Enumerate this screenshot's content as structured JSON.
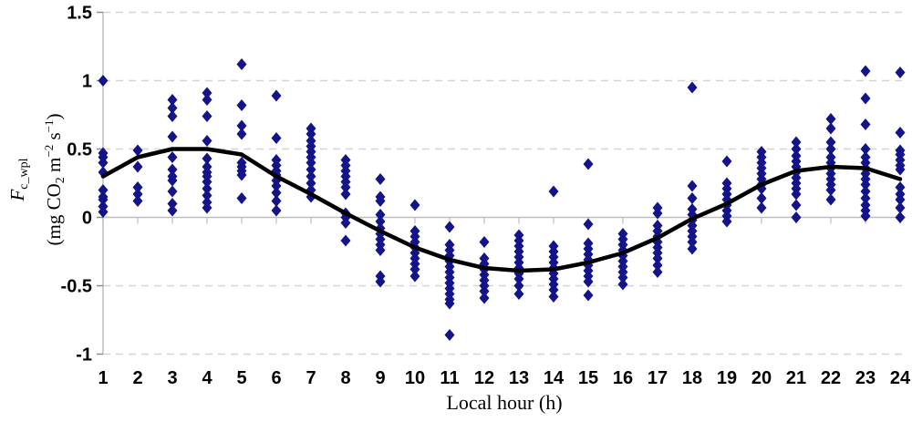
{
  "chart_data": {
    "type": "scatter",
    "xlabel": "Local hour (h)",
    "ylabel_symbol": "F",
    "ylabel_symbol_sub": "c_wpl",
    "ylabel_units_parts": [
      [
        "(mg CO",
        ""
      ],
      [
        "2",
        "sub"
      ],
      [
        " m",
        ""
      ],
      [
        "−2",
        "sup"
      ],
      [
        " s",
        ""
      ],
      [
        "−1",
        "sup"
      ],
      [
        ")",
        ""
      ]
    ],
    "x_categories": [
      1,
      2,
      3,
      4,
      5,
      6,
      7,
      8,
      9,
      10,
      11,
      12,
      13,
      14,
      15,
      16,
      17,
      18,
      19,
      20,
      21,
      22,
      23,
      24
    ],
    "y_tick_labels": [
      "1.5",
      "1",
      "0.5",
      "0",
      "-0.5",
      "-1"
    ],
    "y_tick_values": [
      1.5,
      1,
      0.5,
      0,
      -0.5,
      -1
    ],
    "ylim": [
      -1,
      1.5
    ],
    "grid": "horizontal, dashed at 1.5/1/0.5/-0.5/-1, solid at 0",
    "legend": "none",
    "marker": {
      "shape": "diamond",
      "color": "#14148a"
    },
    "mean_line_color": "#000000",
    "gridline_color": "#d4d4d4",
    "axis_color": "#bdbdbd",
    "scatter_points_by_hour": {
      "1": [
        1.0,
        0.47,
        0.44,
        0.4,
        0.33,
        0.2,
        0.15,
        0.13,
        0.08,
        0.04
      ],
      "2": [
        0.49,
        0.37,
        0.22,
        0.17,
        0.12
      ],
      "3": [
        0.86,
        0.8,
        0.74,
        0.59,
        0.44,
        0.35,
        0.3,
        0.27,
        0.19,
        0.1,
        0.05
      ],
      "4": [
        0.91,
        0.86,
        0.74,
        0.56,
        0.43,
        0.37,
        0.33,
        0.3,
        0.26,
        0.21,
        0.16,
        0.11,
        0.07
      ],
      "5": [
        1.12,
        0.82,
        0.67,
        0.61,
        0.4,
        0.37,
        0.34,
        0.31,
        0.14
      ],
      "6": [
        0.89,
        0.58,
        0.42,
        0.38,
        0.34,
        0.31,
        0.27,
        0.23,
        0.18,
        0.12,
        0.05
      ],
      "7": [
        0.65,
        0.61,
        0.56,
        0.52,
        0.48,
        0.44,
        0.4,
        0.35,
        0.3,
        0.25,
        0.2,
        0.15
      ],
      "8": [
        0.42,
        0.38,
        0.34,
        0.3,
        0.26,
        0.22,
        0.17,
        0.03,
        0.0,
        -0.04,
        -0.17
      ],
      "9": [
        0.28,
        0.15,
        0.12,
        0.02,
        -0.03,
        -0.08,
        -0.12,
        -0.16,
        -0.2,
        -0.24,
        -0.43,
        -0.47
      ],
      "10": [
        0.09,
        -0.1,
        -0.14,
        -0.18,
        -0.22,
        -0.26,
        -0.3,
        -0.34,
        -0.38,
        -0.43
      ],
      "11": [
        -0.07,
        -0.2,
        -0.24,
        -0.28,
        -0.32,
        -0.36,
        -0.4,
        -0.44,
        -0.48,
        -0.52,
        -0.56,
        -0.6,
        -0.63,
        -0.86
      ],
      "12": [
        -0.18,
        -0.3,
        -0.34,
        -0.38,
        -0.42,
        -0.46,
        -0.5,
        -0.54,
        -0.59
      ],
      "13": [
        -0.13,
        -0.17,
        -0.21,
        -0.25,
        -0.29,
        -0.33,
        -0.37,
        -0.41,
        -0.45,
        -0.5,
        -0.56
      ],
      "14": [
        0.19,
        -0.21,
        -0.25,
        -0.29,
        -0.33,
        -0.37,
        -0.41,
        -0.45,
        -0.49,
        -0.53,
        -0.58
      ],
      "15": [
        0.39,
        -0.05,
        -0.19,
        -0.23,
        -0.27,
        -0.31,
        -0.35,
        -0.39,
        -0.43,
        -0.47,
        -0.57
      ],
      "16": [
        -0.12,
        -0.16,
        -0.2,
        -0.24,
        -0.28,
        -0.32,
        -0.36,
        -0.4,
        -0.44,
        -0.49
      ],
      "17": [
        0.07,
        0.03,
        -0.06,
        -0.1,
        -0.14,
        -0.18,
        -0.22,
        -0.26,
        -0.3,
        -0.35,
        -0.4
      ],
      "18": [
        0.95,
        0.23,
        0.14,
        0.06,
        0.02,
        -0.02,
        -0.06,
        -0.1,
        -0.14,
        -0.18,
        -0.23
      ],
      "19": [
        0.41,
        0.25,
        0.21,
        0.17,
        0.13,
        0.09,
        0.05,
        0.01,
        -0.03
      ],
      "20": [
        0.48,
        0.44,
        0.4,
        0.36,
        0.32,
        0.28,
        0.24,
        0.21,
        0.14,
        0.07
      ],
      "21": [
        0.55,
        0.5,
        0.45,
        0.41,
        0.37,
        0.33,
        0.29,
        0.25,
        0.21,
        0.17,
        0.09,
        0.0
      ],
      "22": [
        0.72,
        0.65,
        0.55,
        0.5,
        0.44,
        0.4,
        0.36,
        0.32,
        0.28,
        0.24,
        0.2,
        0.13
      ],
      "23": [
        1.07,
        0.87,
        0.68,
        0.5,
        0.44,
        0.4,
        0.36,
        0.32,
        0.28,
        0.24,
        0.19,
        0.14,
        0.09,
        0.05,
        0.01
      ],
      "24": [
        1.06,
        0.62,
        0.49,
        0.46,
        0.42,
        0.38,
        0.35,
        0.22,
        0.17,
        0.13,
        0.07,
        0.0
      ]
    },
    "mean_line_values": [
      0.3,
      0.44,
      0.5,
      0.5,
      0.46,
      0.3,
      0.17,
      0.03,
      -0.1,
      -0.22,
      -0.31,
      -0.37,
      -0.39,
      -0.38,
      -0.33,
      -0.26,
      -0.15,
      -0.01,
      0.1,
      0.24,
      0.34,
      0.37,
      0.36,
      0.28
    ]
  }
}
